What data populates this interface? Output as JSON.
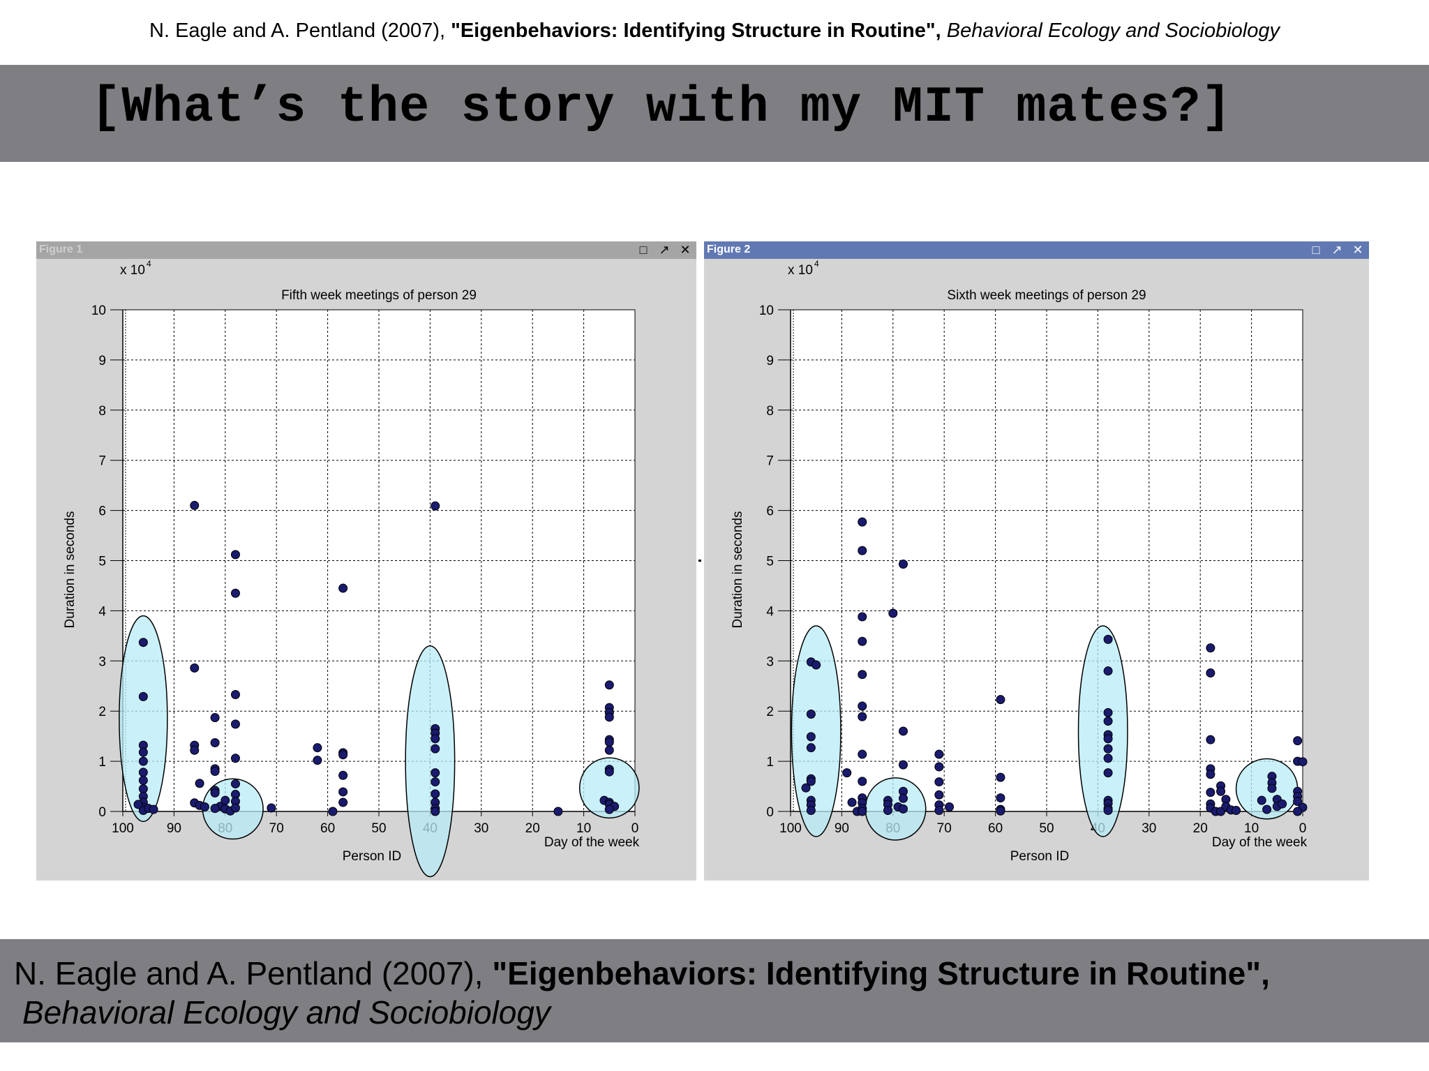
{
  "citation": {
    "authors": "N. Eagle and A. Pentland (2007),",
    "title": "\"Eigenbehaviors: Identifying Structure in Routine\",",
    "journal": "Behavioral Ecology and Sociobiology"
  },
  "slide_title": "[What’s the story with my MIT mates?]",
  "colors": {
    "band": "#7f7e82",
    "point": "#1a1a6e",
    "cluster_fill": "#b8ecf7",
    "fig2_titlebar": "#6179b3"
  },
  "windows": [
    {
      "name": "Figure 1",
      "icons": [
        "maximize-icon",
        "undock-icon",
        "close-icon"
      ],
      "icon_glyphs": [
        "□",
        "↗",
        "✕"
      ]
    },
    {
      "name": "Figure 2",
      "icons": [
        "maximize-icon",
        "undock-icon",
        "close-icon"
      ],
      "icon_glyphs": [
        "□",
        "↗",
        "✕"
      ]
    }
  ],
  "chart_data": [
    {
      "type": "scatter",
      "title": "Fifth week meetings of person 29",
      "xlabel": "Person ID",
      "xlabel2": "Day of the week",
      "ylabel": "Duration in seconds",
      "y_multiplier": "x 10",
      "y_exponent": "4",
      "xlim": [
        100,
        0
      ],
      "ylim": [
        0,
        10
      ],
      "x_reversed": true,
      "grid": true,
      "xticks": [
        100,
        90,
        80,
        70,
        60,
        50,
        40,
        30,
        20,
        10,
        0
      ],
      "yticks": [
        0,
        1,
        2,
        3,
        4,
        5,
        6,
        7,
        8,
        9,
        10
      ],
      "points": [
        [
          96,
          3.37
        ],
        [
          96,
          2.29
        ],
        [
          96,
          1.32
        ],
        [
          96,
          1.18
        ],
        [
          96,
          1.0
        ],
        [
          96,
          0.78
        ],
        [
          96,
          0.62
        ],
        [
          96,
          0.45
        ],
        [
          96,
          0.3
        ],
        [
          96,
          0.18
        ],
        [
          96,
          0.08
        ],
        [
          96,
          0.02
        ],
        [
          97,
          0.14
        ],
        [
          95,
          0.06
        ],
        [
          94,
          0.04
        ],
        [
          86,
          6.1
        ],
        [
          86,
          2.86
        ],
        [
          86,
          1.32
        ],
        [
          86,
          1.22
        ],
        [
          85,
          0.56
        ],
        [
          86,
          0.17
        ],
        [
          85,
          0.12
        ],
        [
          84,
          0.09
        ],
        [
          82,
          1.87
        ],
        [
          82,
          1.37
        ],
        [
          82,
          0.85
        ],
        [
          82,
          0.8
        ],
        [
          82,
          0.42
        ],
        [
          82,
          0.37
        ],
        [
          81,
          0.1
        ],
        [
          82,
          0.06
        ],
        [
          80,
          0.22
        ],
        [
          80,
          0.05
        ],
        [
          79,
          0.01
        ],
        [
          78,
          5.12
        ],
        [
          78,
          4.35
        ],
        [
          78,
          2.33
        ],
        [
          78,
          1.74
        ],
        [
          78,
          1.06
        ],
        [
          78,
          0.55
        ],
        [
          78,
          0.34
        ],
        [
          78,
          0.2
        ],
        [
          78,
          0.07
        ],
        [
          71,
          0.07
        ],
        [
          62,
          1.27
        ],
        [
          62,
          1.02
        ],
        [
          59,
          0.0
        ],
        [
          57,
          4.45
        ],
        [
          57,
          1.17
        ],
        [
          57,
          1.13
        ],
        [
          57,
          0.72
        ],
        [
          57,
          0.39
        ],
        [
          57,
          0.18
        ],
        [
          39,
          6.09
        ],
        [
          39,
          1.65
        ],
        [
          39,
          1.56
        ],
        [
          39,
          1.45
        ],
        [
          39,
          1.25
        ],
        [
          39,
          0.77
        ],
        [
          39,
          0.59
        ],
        [
          39,
          0.35
        ],
        [
          39,
          0.18
        ],
        [
          39,
          0.06
        ],
        [
          39,
          0.0
        ],
        [
          15,
          0.0
        ],
        [
          5,
          2.52
        ],
        [
          5,
          2.07
        ],
        [
          5,
          1.97
        ],
        [
          5,
          1.88
        ],
        [
          5,
          1.43
        ],
        [
          5,
          1.38
        ],
        [
          5,
          1.22
        ],
        [
          5,
          0.84
        ],
        [
          5,
          0.79
        ],
        [
          6,
          0.22
        ],
        [
          5,
          0.18
        ],
        [
          5,
          0.14
        ],
        [
          4,
          0.1
        ],
        [
          5,
          0.04
        ]
      ],
      "clusters": [
        {
          "cx": 96,
          "cy": 1.85,
          "rx": 4.7,
          "ry": 2.05
        },
        {
          "cx": 78.5,
          "cy": 0.05,
          "rx": 5.9,
          "ry": 0.6
        },
        {
          "cx": 40,
          "cy": 1.0,
          "rx": 4.8,
          "ry": 2.3
        },
        {
          "cx": 5,
          "cy": 0.47,
          "rx": 5.8,
          "ry": 0.6
        }
      ]
    },
    {
      "type": "scatter",
      "title": "Sixth week meetings of person 29",
      "xlabel": "Person ID",
      "xlabel2": "Day of the week",
      "ylabel": "Duration in seconds",
      "y_multiplier": "x 10",
      "y_exponent": "4",
      "xlim": [
        100,
        0
      ],
      "ylim": [
        0,
        10
      ],
      "x_reversed": true,
      "grid": true,
      "xticks": [
        100,
        90,
        80,
        70,
        60,
        50,
        40,
        30,
        20,
        10,
        0
      ],
      "yticks": [
        0,
        1,
        2,
        3,
        4,
        5,
        6,
        7,
        8,
        9,
        10
      ],
      "points": [
        [
          96,
          2.98
        ],
        [
          95,
          2.92
        ],
        [
          96,
          1.94
        ],
        [
          96,
          1.49
        ],
        [
          96,
          1.27
        ],
        [
          96,
          0.65
        ],
        [
          96,
          0.6
        ],
        [
          97,
          0.47
        ],
        [
          96,
          0.22
        ],
        [
          96,
          0.13
        ],
        [
          96,
          0.02
        ],
        [
          89,
          0.77
        ],
        [
          88,
          0.18
        ],
        [
          87,
          0.0
        ],
        [
          86,
          5.77
        ],
        [
          86,
          5.2
        ],
        [
          86,
          3.88
        ],
        [
          86,
          3.39
        ],
        [
          86,
          2.73
        ],
        [
          86,
          2.1
        ],
        [
          86,
          1.89
        ],
        [
          86,
          1.14
        ],
        [
          86,
          0.6
        ],
        [
          86,
          0.27
        ],
        [
          86,
          0.17
        ],
        [
          86,
          0.06
        ],
        [
          86,
          0.0
        ],
        [
          80,
          3.95
        ],
        [
          81,
          0.22
        ],
        [
          81,
          0.14
        ],
        [
          81,
          0.02
        ],
        [
          79,
          0.09
        ],
        [
          78,
          4.93
        ],
        [
          78,
          1.6
        ],
        [
          78,
          0.93
        ],
        [
          78,
          0.4
        ],
        [
          78,
          0.26
        ],
        [
          78,
          0.05
        ],
        [
          71,
          1.14
        ],
        [
          71,
          0.89
        ],
        [
          71,
          0.59
        ],
        [
          71,
          0.33
        ],
        [
          71,
          0.13
        ],
        [
          71,
          0.02
        ],
        [
          69,
          0.09
        ],
        [
          59,
          2.23
        ],
        [
          59,
          0.68
        ],
        [
          59,
          0.27
        ],
        [
          59,
          0.04
        ],
        [
          59,
          0.01
        ],
        [
          38,
          3.43
        ],
        [
          38,
          2.8
        ],
        [
          38,
          1.97
        ],
        [
          38,
          1.8
        ],
        [
          38,
          1.53
        ],
        [
          38,
          1.45
        ],
        [
          38,
          1.25
        ],
        [
          38,
          1.06
        ],
        [
          38,
          0.77
        ],
        [
          38,
          0.22
        ],
        [
          38,
          0.16
        ],
        [
          38,
          0.06
        ],
        [
          38,
          0.02
        ],
        [
          18,
          3.26
        ],
        [
          18,
          2.76
        ],
        [
          18,
          1.43
        ],
        [
          18,
          0.85
        ],
        [
          18,
          0.74
        ],
        [
          18,
          0.38
        ],
        [
          18,
          0.15
        ],
        [
          18,
          0.07
        ],
        [
          17,
          0.0
        ],
        [
          16,
          0.51
        ],
        [
          16,
          0.4
        ],
        [
          16,
          0.0
        ],
        [
          15,
          0.24
        ],
        [
          15,
          0.1
        ],
        [
          14,
          0.03
        ],
        [
          13,
          0.02
        ],
        [
          8,
          0.22
        ],
        [
          7,
          0.04
        ],
        [
          6,
          0.7
        ],
        [
          6,
          0.57
        ],
        [
          6,
          0.46
        ],
        [
          5,
          0.24
        ],
        [
          5,
          0.1
        ],
        [
          4,
          0.15
        ],
        [
          1,
          1.41
        ],
        [
          1,
          1.0
        ],
        [
          0,
          0.99
        ],
        [
          1,
          0.4
        ],
        [
          1,
          0.3
        ],
        [
          1,
          0.2
        ],
        [
          0,
          0.08
        ],
        [
          1,
          0.0
        ]
      ],
      "clusters": [
        {
          "cx": 95,
          "cy": 1.6,
          "rx": 4.8,
          "ry": 2.1
        },
        {
          "cx": 79.5,
          "cy": 0.05,
          "rx": 5.9,
          "ry": 0.62
        },
        {
          "cx": 39,
          "cy": 1.6,
          "rx": 4.8,
          "ry": 2.1
        },
        {
          "cx": 7,
          "cy": 0.45,
          "rx": 6.0,
          "ry": 0.6
        }
      ]
    }
  ]
}
